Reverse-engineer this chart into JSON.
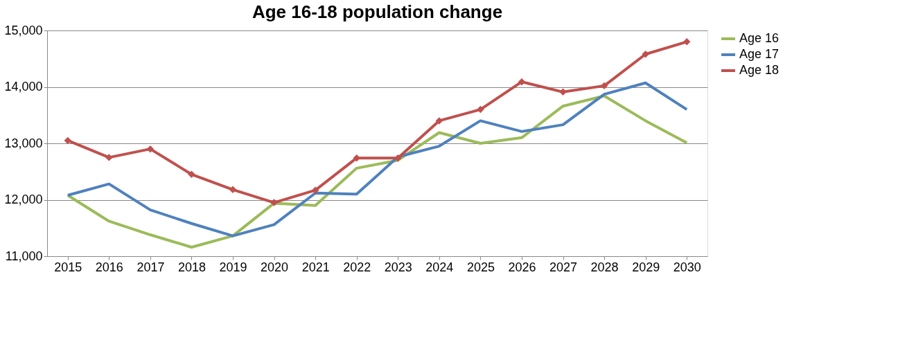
{
  "chart_data": {
    "type": "line",
    "title": "Age 16-18 population change",
    "categories": [
      "2015",
      "2016",
      "2017",
      "2018",
      "2019",
      "2020",
      "2021",
      "2022",
      "2023",
      "2024",
      "2025",
      "2026",
      "2027",
      "2028",
      "2029",
      "2030"
    ],
    "series": [
      {
        "name": "Age 16",
        "color": "#9bbb59",
        "marker": "none",
        "values": [
          12080,
          11620,
          11380,
          11160,
          11360,
          11940,
          11900,
          12560,
          12700,
          13190,
          13000,
          13100,
          13660,
          13840,
          13400,
          13010
        ]
      },
      {
        "name": "Age 17",
        "color": "#4f81bd",
        "marker": "none",
        "values": [
          12080,
          12280,
          11820,
          11580,
          11360,
          11560,
          12120,
          12100,
          12760,
          12950,
          13400,
          13210,
          13330,
          13870,
          14070,
          13600
        ]
      },
      {
        "name": "Age 18",
        "color": "#c0504d",
        "marker": "diamond",
        "values": [
          13050,
          12750,
          12900,
          12450,
          12180,
          11950,
          12170,
          12740,
          12740,
          13400,
          13600,
          14090,
          13910,
          14020,
          14580,
          14800
        ]
      }
    ],
    "ylim": [
      11000,
      15000
    ],
    "yticks": [
      {
        "value": 11000,
        "label": "11,000"
      },
      {
        "value": 12000,
        "label": "12,000"
      },
      {
        "value": 13000,
        "label": "13,000"
      },
      {
        "value": 14000,
        "label": "14,000"
      },
      {
        "value": 15000,
        "label": "15,000"
      }
    ],
    "grid": "y",
    "legend": "right",
    "line_style": "solid"
  }
}
